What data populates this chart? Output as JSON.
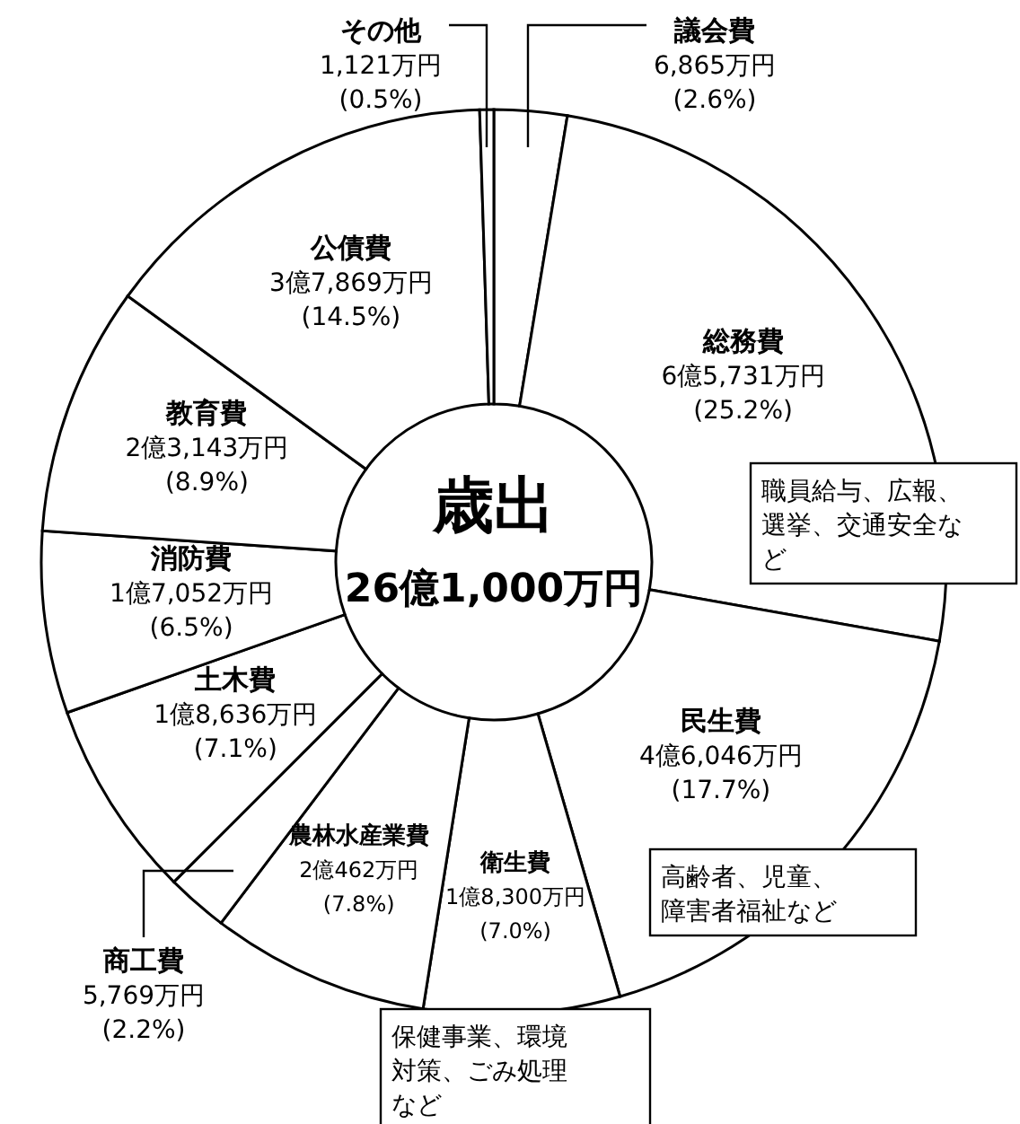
{
  "chart_data": {
    "type": "donut",
    "title": "歳出",
    "subtitle": "26億1,000万円",
    "categories": [
      "議会費",
      "総務費",
      "民生費",
      "衛生費",
      "農林水産業費",
      "商工費",
      "土木費",
      "消防費",
      "教育費",
      "公債費",
      "その他"
    ],
    "values": [
      2.6,
      25.2,
      17.7,
      7.0,
      7.8,
      2.2,
      7.1,
      6.5,
      8.9,
      14.5,
      0.5
    ],
    "value_labels": [
      "6,865万円\n(2.6%)",
      "6億5,731万円\n(25.2%)",
      "4億6,046万円\n(17.7%)",
      "1億8,300万円\n(7.0%)",
      "2億462万円\n(7.8%)",
      "5,769万円\n(2.2%)",
      "1億8,636万円\n(7.1%)",
      "1億7,052万円\n(6.5%)",
      "2億3,143万円\n(8.9%)",
      "3億7,869万円\n(14.5%)",
      "1,121万円\n(0.5%)"
    ],
    "colors": [
      "#ffffff",
      "#ffffff",
      "#ffffff",
      "#ffffff",
      "#ffffff",
      "#ffffff",
      "#ffffff",
      "#ffffff",
      "#ffffff",
      "#ffffff",
      "#ffffff"
    ],
    "annotations": [
      "職員給与、広報、選挙、交通安全など",
      "高齢者、児童、障害者福祉など",
      "保健事業、環境対策、ごみ処理など"
    ]
  }
}
